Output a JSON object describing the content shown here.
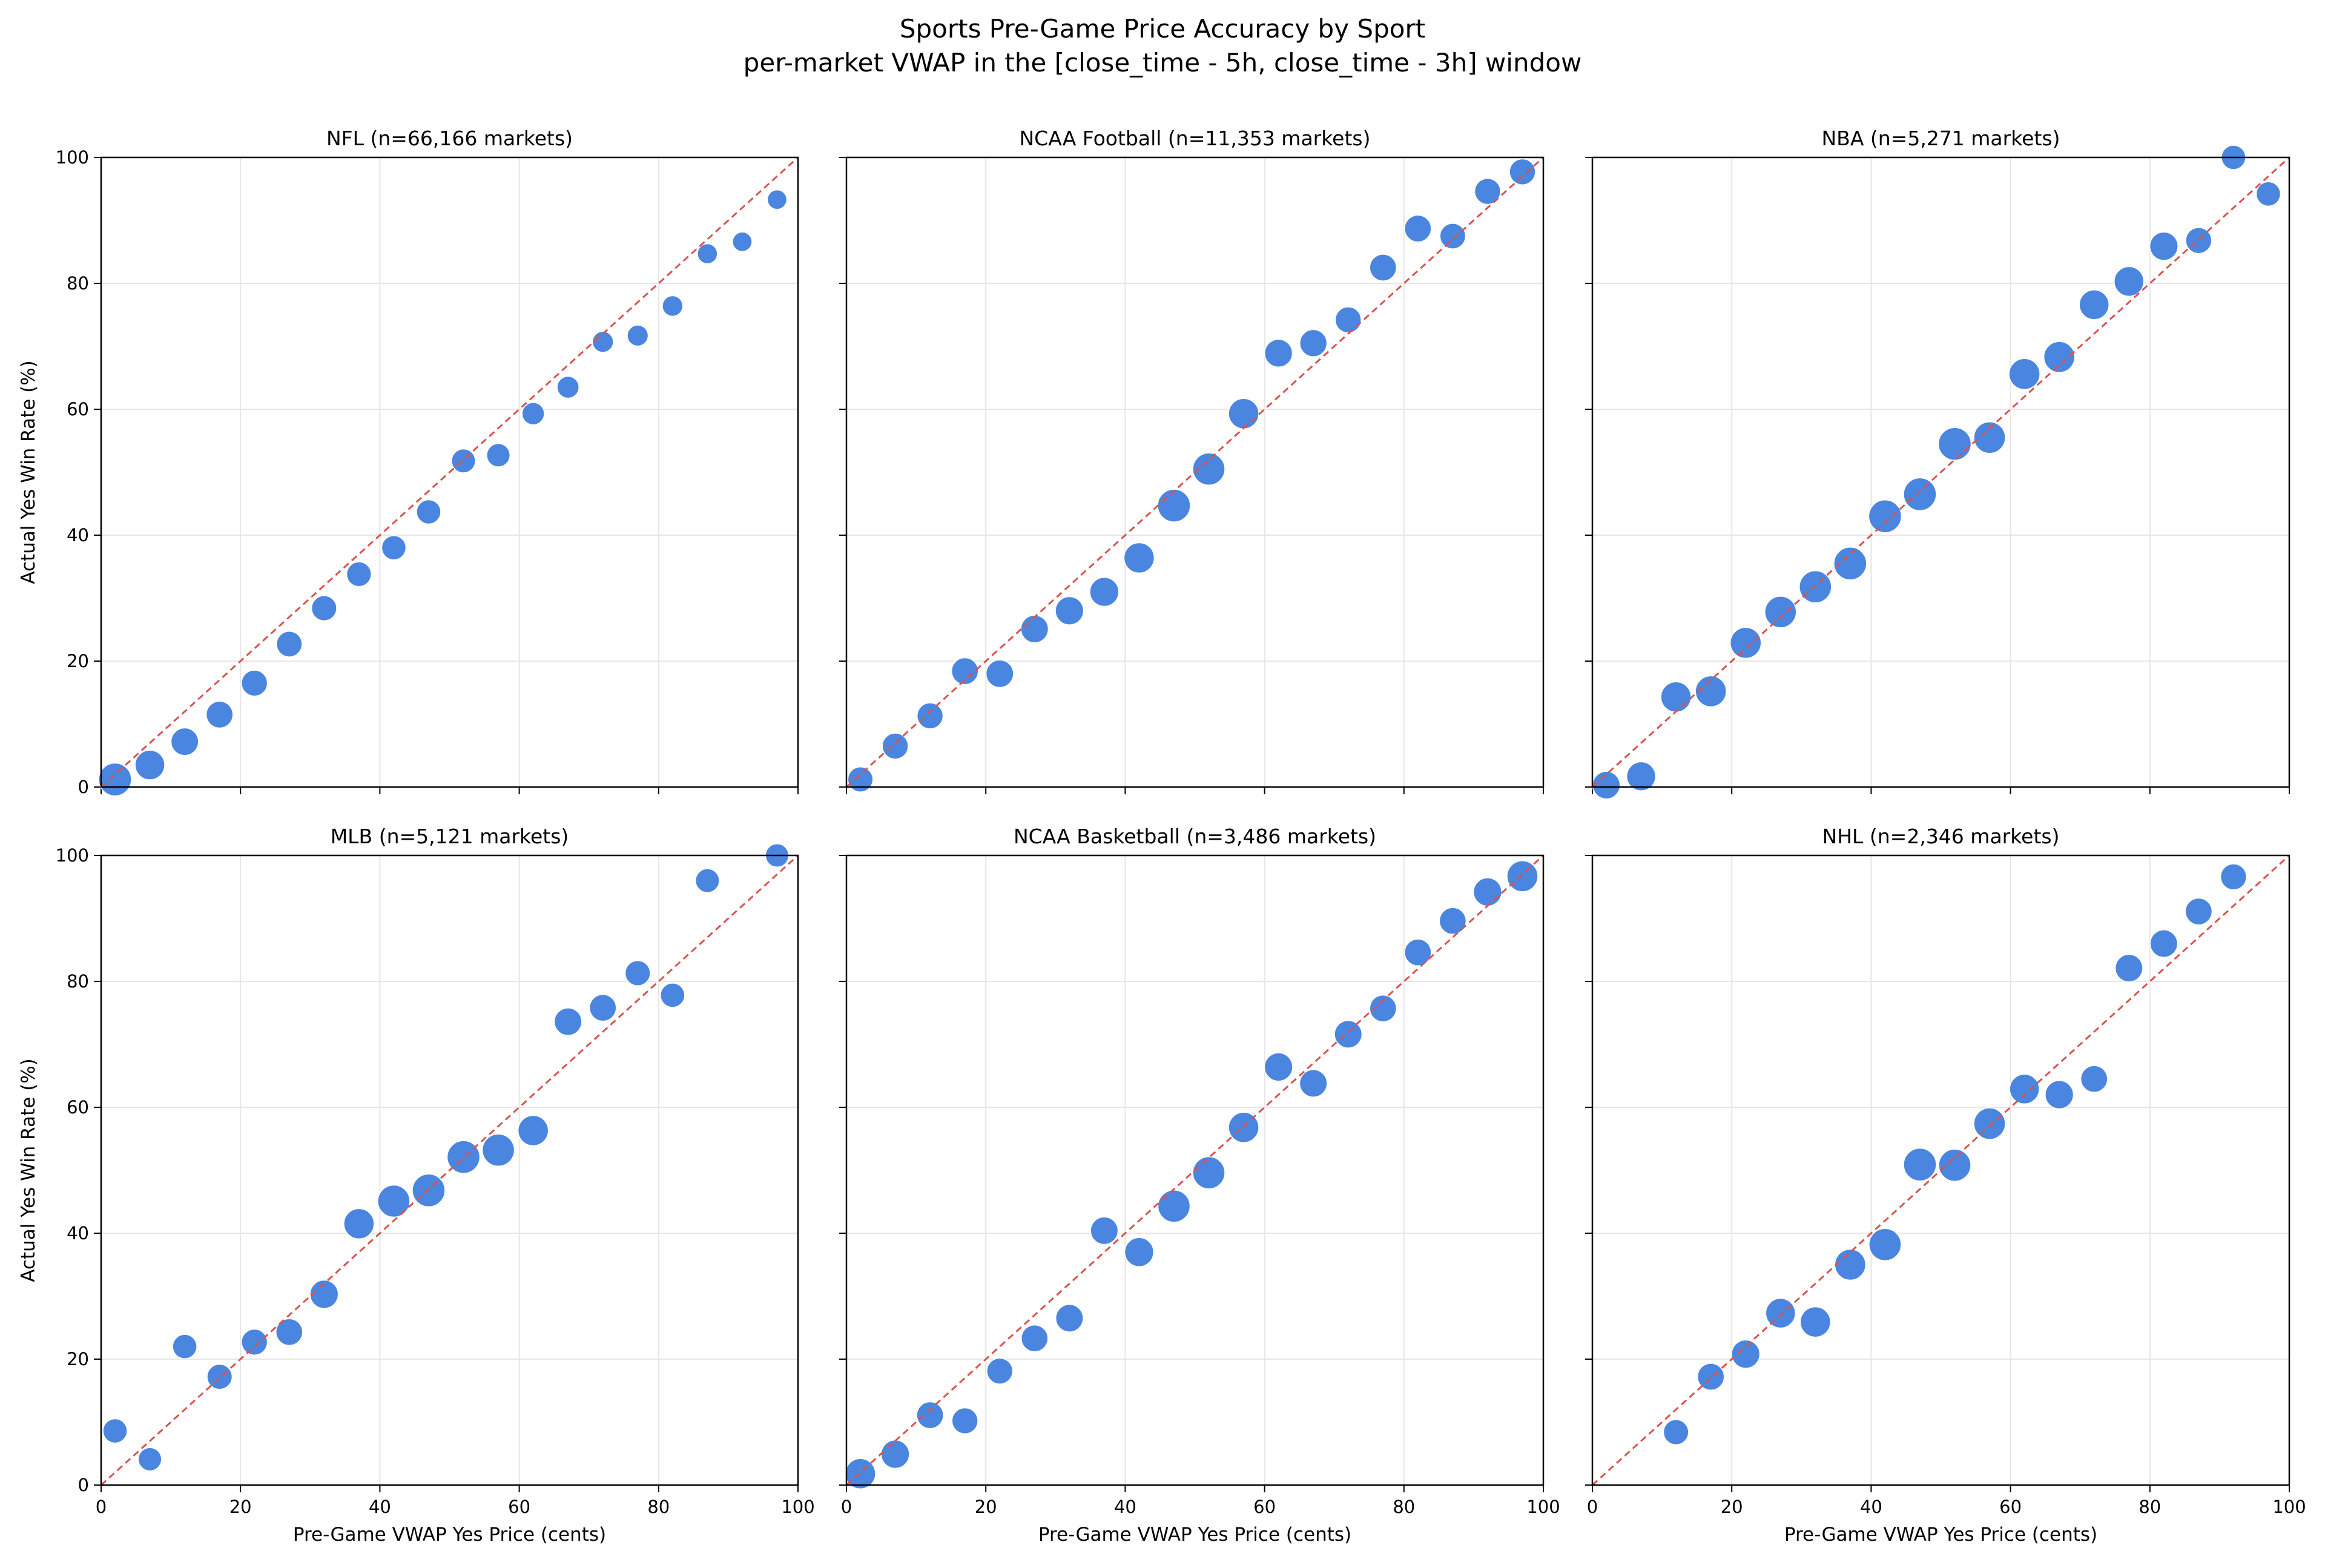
{
  "chart_data": {
    "type": "scatter",
    "title": "Sports Pre-Game Price Accuracy by Sport",
    "subtitle": "per-market VWAP in the [close_time - 5h, close_time - 3h] window",
    "xlabel": "Pre-Game VWAP Yes Price (cents)",
    "ylabel": "Actual Yes Win Rate (%)",
    "xlim": [
      0,
      100
    ],
    "ylim": [
      0,
      100
    ],
    "xticks": [
      "0",
      "20",
      "40",
      "60",
      "80",
      "100"
    ],
    "yticks": [
      "0",
      "20",
      "40",
      "60",
      "80",
      "100"
    ],
    "grid": true,
    "point_color": "#4a86e0",
    "reference_line": {
      "label": "perfect calibration y = x",
      "color": "#d9534f",
      "style": "dashed"
    },
    "panels": [
      {
        "title": "NFL  (n=66,166 markets)",
        "points": [
          [
            2,
            1.2,
            1.0
          ],
          [
            7,
            3.5,
            0.75
          ],
          [
            12,
            7.2,
            0.6
          ],
          [
            17,
            11.5,
            0.55
          ],
          [
            22,
            16.5,
            0.5
          ],
          [
            27,
            22.7,
            0.48
          ],
          [
            32,
            28.4,
            0.45
          ],
          [
            37,
            33.8,
            0.42
          ],
          [
            42,
            38,
            0.4
          ],
          [
            47,
            43.7,
            0.4
          ],
          [
            52,
            51.8,
            0.38
          ],
          [
            57,
            52.7,
            0.35
          ],
          [
            62,
            59.3,
            0.3
          ],
          [
            67,
            63.5,
            0.28
          ],
          [
            72,
            70.7,
            0.24
          ],
          [
            77,
            71.7,
            0.24
          ],
          [
            82,
            76.4,
            0.22
          ],
          [
            87,
            84.7,
            0.2
          ],
          [
            92,
            86.6,
            0.18
          ],
          [
            97,
            93.3,
            0.18
          ]
        ]
      },
      {
        "title": "NCAA Football  (n=11,353 markets)",
        "points": [
          [
            2,
            1.2,
            0.45
          ],
          [
            7,
            6.5,
            0.5
          ],
          [
            12,
            11.3,
            0.5
          ],
          [
            17,
            18.4,
            0.55
          ],
          [
            22,
            18,
            0.6
          ],
          [
            27,
            25.1,
            0.6
          ],
          [
            32,
            28,
            0.65
          ],
          [
            37,
            31,
            0.7
          ],
          [
            42,
            36.4,
            0.8
          ],
          [
            47,
            44.7,
            1.0
          ],
          [
            52,
            50.5,
            0.95
          ],
          [
            57,
            59.3,
            0.8
          ],
          [
            62,
            68.9,
            0.62
          ],
          [
            67,
            70.5,
            0.58
          ],
          [
            72,
            74.2,
            0.5
          ],
          [
            77,
            82.5,
            0.55
          ],
          [
            82,
            88.7,
            0.55
          ],
          [
            87,
            87.5,
            0.48
          ],
          [
            92,
            94.6,
            0.5
          ],
          [
            97,
            97.7,
            0.5
          ]
        ]
      },
      {
        "title": "NBA  (n=5,271 markets)",
        "points": [
          [
            2,
            0.3,
            0.6
          ],
          [
            7,
            1.7,
            0.7
          ],
          [
            12,
            14.3,
            0.8
          ],
          [
            17,
            15.2,
            0.85
          ],
          [
            22,
            22.9,
            0.85
          ],
          [
            27,
            27.8,
            0.9
          ],
          [
            32,
            31.8,
            0.95
          ],
          [
            37,
            35.5,
            1.0
          ],
          [
            42,
            43,
            1.0
          ],
          [
            47,
            46.5,
            1.0
          ],
          [
            52,
            54.5,
            1.0
          ],
          [
            57,
            55.5,
            0.9
          ],
          [
            62,
            65.6,
            0.85
          ],
          [
            67,
            68.3,
            0.85
          ],
          [
            72,
            76.6,
            0.75
          ],
          [
            77,
            80.3,
            0.75
          ],
          [
            82,
            85.9,
            0.65
          ],
          [
            87,
            86.8,
            0.5
          ],
          [
            92,
            100,
            0.4
          ],
          [
            97,
            94.2,
            0.4
          ]
        ]
      },
      {
        "title": "MLB  (n=5,121 markets)",
        "points": [
          [
            2,
            8.6,
            0.4
          ],
          [
            7,
            4.1,
            0.35
          ],
          [
            12,
            22,
            0.4
          ],
          [
            17,
            17.2,
            0.45
          ],
          [
            22,
            22.7,
            0.5
          ],
          [
            27,
            24.3,
            0.55
          ],
          [
            32,
            30.3,
            0.65
          ],
          [
            37,
            41.5,
            0.8
          ],
          [
            42,
            45.1,
            0.95
          ],
          [
            47,
            46.8,
            1.0
          ],
          [
            52,
            52.1,
            1.0
          ],
          [
            57,
            53.2,
            0.95
          ],
          [
            62,
            56.3,
            0.8
          ],
          [
            67,
            73.6,
            0.6
          ],
          [
            72,
            75.8,
            0.55
          ],
          [
            77,
            81.3,
            0.45
          ],
          [
            82,
            77.8,
            0.4
          ],
          [
            87,
            96,
            0.38
          ],
          [
            97,
            100,
            0.35
          ]
        ]
      },
      {
        "title": "NCAA Basketball  (n=3,486 markets)",
        "points": [
          [
            2,
            1.8,
            0.8
          ],
          [
            7,
            4.9,
            0.65
          ],
          [
            12,
            11.1,
            0.55
          ],
          [
            17,
            10.2,
            0.5
          ],
          [
            22,
            18.1,
            0.5
          ],
          [
            27,
            23.3,
            0.55
          ],
          [
            32,
            26.5,
            0.6
          ],
          [
            37,
            40.4,
            0.6
          ],
          [
            42,
            37,
            0.7
          ],
          [
            47,
            44.3,
            0.95
          ],
          [
            52,
            49.6,
            0.95
          ],
          [
            57,
            56.8,
            0.8
          ],
          [
            62,
            66.4,
            0.65
          ],
          [
            67,
            63.8,
            0.6
          ],
          [
            72,
            71.6,
            0.6
          ],
          [
            77,
            75.7,
            0.55
          ],
          [
            82,
            84.6,
            0.55
          ],
          [
            87,
            89.6,
            0.55
          ],
          [
            92,
            94.2,
            0.65
          ],
          [
            97,
            96.7,
            0.85
          ]
        ]
      },
      {
        "title": "NHL  (n=2,346 markets)",
        "points": [
          [
            12,
            8.4,
            0.45
          ],
          [
            17,
            17.2,
            0.55
          ],
          [
            22,
            20.8,
            0.65
          ],
          [
            27,
            27.3,
            0.75
          ],
          [
            32,
            25.9,
            0.8
          ],
          [
            37,
            35,
            0.85
          ],
          [
            42,
            38.2,
            0.95
          ],
          [
            47,
            50.9,
            1.0
          ],
          [
            52,
            50.8,
            0.95
          ],
          [
            57,
            57.4,
            0.9
          ],
          [
            62,
            62.9,
            0.75
          ],
          [
            67,
            62,
            0.65
          ],
          [
            72,
            64.5,
            0.55
          ],
          [
            77,
            82.1,
            0.6
          ],
          [
            82,
            86,
            0.6
          ],
          [
            87,
            91.1,
            0.55
          ],
          [
            92,
            96.6,
            0.5
          ]
        ]
      }
    ]
  }
}
